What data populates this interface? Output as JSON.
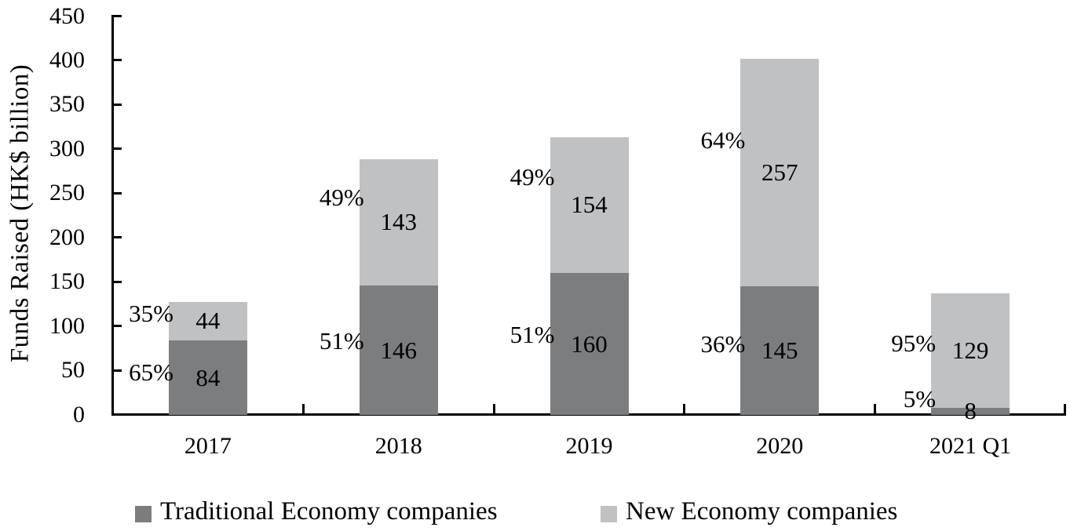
{
  "chart_data": {
    "type": "bar",
    "variant": "stacked-vertical",
    "title": "",
    "ylabel": "Funds Raised (HK$ billion)",
    "xlabel": "",
    "categories": [
      "2017",
      "2018",
      "2019",
      "2020",
      "2021 Q1"
    ],
    "series": [
      {
        "name": "Traditional Economy companies",
        "color": "#7c7d7f",
        "values": [
          84,
          146,
          160,
          145,
          8
        ],
        "percent_labels": [
          "65%",
          "51%",
          "51%",
          "36%",
          "5%"
        ]
      },
      {
        "name": "New Economy companies",
        "color": "#c0c1c3",
        "values": [
          44,
          143,
          154,
          257,
          129
        ],
        "percent_labels": [
          "35%",
          "49%",
          "49%",
          "64%",
          "95%"
        ]
      }
    ],
    "ylim": [
      0,
      450
    ],
    "yticks": [
      0,
      50,
      100,
      150,
      200,
      250,
      300,
      350,
      400,
      450
    ],
    "grid": false,
    "legend_position": "bottom",
    "axis_color": "#000000",
    "layout_hints": {
      "pct_label_dy": [
        [
          -7,
          -12,
          -12,
          -8,
          -15
        ],
        [
          -9,
          -31,
          -35,
          -41,
          -9
        ]
      ]
    }
  }
}
